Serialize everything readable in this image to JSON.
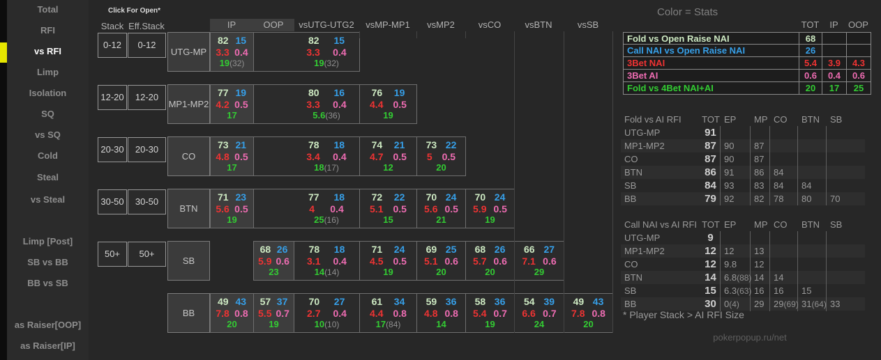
{
  "sidebar": {
    "items": [
      {
        "label": "Total",
        "active": false
      },
      {
        "label": "RFI",
        "active": false
      },
      {
        "label": "vs RFI",
        "active": true
      },
      {
        "label": "Limp",
        "active": false
      },
      {
        "label": "Isolation",
        "active": false
      },
      {
        "label": "SQ",
        "active": false
      },
      {
        "label": "vs SQ",
        "active": false
      },
      {
        "label": "Cold",
        "active": false
      },
      {
        "label": "Steal",
        "active": false
      },
      {
        "label": "vs Steal",
        "active": false
      },
      {
        "label": "Limp [Post]",
        "active": false
      },
      {
        "label": "SB vs BB",
        "active": false
      },
      {
        "label": "BB vs SB",
        "active": false
      },
      {
        "label": "as Raiser[OOP]",
        "active": false
      },
      {
        "label": "as Raiser[IP]",
        "active": false
      }
    ]
  },
  "grid": {
    "note": "Click For Open*",
    "stack_header": "Stack",
    "eff_stack_header": "Eff.Stack",
    "columns": [
      "IP",
      "OOP",
      "vsUTG-UTG2",
      "vsMP-MP1",
      "vsMP2",
      "vsCO",
      "vsBTN",
      "vsSB"
    ],
    "rows": [
      {
        "stack": "0-12",
        "eff_stack": "0-12",
        "position": "UTG-MP",
        "cells": [
          {
            "span": "ip",
            "hl": true,
            "fold": "82",
            "call": "15",
            "b3": "3.3",
            "b3ai": "0.4",
            "f4": "19",
            "p": "(32)"
          },
          {
            "span": "merged",
            "hl": false,
            "fold": "82",
            "call": "15",
            "b3": "3.3",
            "b3ai": "0.4",
            "f4": "19",
            "p": "(32)"
          }
        ]
      },
      {
        "stack": "12-20",
        "eff_stack": "12-20",
        "position": "MP1-MP2",
        "cells": [
          {
            "span": "ip",
            "hl": true,
            "fold": "77",
            "call": "19",
            "b3": "4.2",
            "b3ai": "0.5",
            "f4": "17",
            "p": ""
          },
          {
            "span": "merged",
            "hl": false,
            "fold": "80",
            "call": "16",
            "b3": "3.3",
            "b3ai": "0.4",
            "f4": "5.6",
            "p": "(36)"
          },
          {
            "span": "vsmp1",
            "hl": false,
            "fold": "76",
            "call": "19",
            "b3": "4.4",
            "b3ai": "0.5",
            "f4": "19",
            "p": ""
          }
        ]
      },
      {
        "stack": "20-30",
        "eff_stack": "20-30",
        "position": "CO",
        "cells": [
          {
            "span": "ip",
            "hl": true,
            "fold": "73",
            "call": "21",
            "b3": "4.8",
            "b3ai": "0.5",
            "f4": "17",
            "p": ""
          },
          {
            "span": "merged",
            "hl": false,
            "fold": "78",
            "call": "18",
            "b3": "3.4",
            "b3ai": "0.4",
            "f4": "18",
            "p": "(17)"
          },
          {
            "span": "vsmp1",
            "hl": false,
            "fold": "74",
            "call": "21",
            "b3": "4.7",
            "b3ai": "0.5",
            "f4": "12",
            "p": ""
          },
          {
            "span": "vsmp2",
            "hl": false,
            "fold": "73",
            "call": "22",
            "b3": "5",
            "b3ai": "0.5",
            "f4": "20",
            "p": ""
          }
        ]
      },
      {
        "stack": "30-50",
        "eff_stack": "30-50",
        "position": "BTN",
        "cells": [
          {
            "span": "ip",
            "hl": true,
            "fold": "71",
            "call": "23",
            "b3": "5.6",
            "b3ai": "0.5",
            "f4": "19",
            "p": ""
          },
          {
            "span": "merged",
            "hl": false,
            "fold": "77",
            "call": "18",
            "b3": "4",
            "b3ai": "0.4",
            "f4": "25",
            "p": "(16)"
          },
          {
            "span": "vsmp1",
            "hl": false,
            "fold": "72",
            "call": "22",
            "b3": "5.1",
            "b3ai": "0.5",
            "f4": "15",
            "p": ""
          },
          {
            "span": "vsmp2",
            "hl": false,
            "fold": "70",
            "call": "24",
            "b3": "5.6",
            "b3ai": "0.5",
            "f4": "21",
            "p": ""
          },
          {
            "span": "vsco",
            "hl": false,
            "fold": "70",
            "call": "24",
            "b3": "5.9",
            "b3ai": "0.5",
            "f4": "19",
            "p": ""
          }
        ]
      },
      {
        "stack": "50+",
        "eff_stack": "50+",
        "position": "SB",
        "cells": [
          {
            "span": "oop",
            "hl": true,
            "fold": "68",
            "call": "26",
            "b3": "5.9",
            "b3ai": "0.6",
            "f4": "23",
            "p": ""
          },
          {
            "span": "vsutg",
            "hl": false,
            "fold": "78",
            "call": "18",
            "b3": "3.1",
            "b3ai": "0.4",
            "f4": "14",
            "p": "(14)"
          },
          {
            "span": "vsmp1",
            "hl": false,
            "fold": "71",
            "call": "24",
            "b3": "4.5",
            "b3ai": "0.5",
            "f4": "19",
            "p": ""
          },
          {
            "span": "vsmp2",
            "hl": false,
            "fold": "69",
            "call": "25",
            "b3": "5.1",
            "b3ai": "0.6",
            "f4": "20",
            "p": ""
          },
          {
            "span": "vsco",
            "hl": false,
            "fold": "68",
            "call": "26",
            "b3": "5.7",
            "b3ai": "0.6",
            "f4": "20",
            "p": ""
          },
          {
            "span": "vsbtn",
            "hl": false,
            "fold": "66",
            "call": "27",
            "b3": "7.1",
            "b3ai": "0.6",
            "f4": "29",
            "p": ""
          }
        ]
      },
      {
        "stack": "",
        "eff_stack": "",
        "position": "BB",
        "cells": [
          {
            "span": "ip",
            "hl": true,
            "fold": "49",
            "call": "43",
            "b3": "7.8",
            "b3ai": "0.8",
            "f4": "20",
            "p": ""
          },
          {
            "span": "oop",
            "hl": true,
            "fold": "57",
            "call": "37",
            "b3": "5.5",
            "b3ai": "0.7",
            "f4": "19",
            "p": ""
          },
          {
            "span": "vsutg",
            "hl": false,
            "fold": "70",
            "call": "27",
            "b3": "2.7",
            "b3ai": "0.4",
            "f4": "10",
            "p": "(10)"
          },
          {
            "span": "vsmp1",
            "hl": false,
            "fold": "61",
            "call": "34",
            "b3": "4.4",
            "b3ai": "0.8",
            "f4": "17",
            "p": "(84)"
          },
          {
            "span": "vsmp2",
            "hl": false,
            "fold": "59",
            "call": "36",
            "b3": "4.8",
            "b3ai": "0.8",
            "f4": "14",
            "p": ""
          },
          {
            "span": "vsco",
            "hl": false,
            "fold": "58",
            "call": "36",
            "b3": "5.4",
            "b3ai": "0.7",
            "f4": "19",
            "p": ""
          },
          {
            "span": "vsbtn",
            "hl": false,
            "fold": "54",
            "call": "39",
            "b3": "6.6",
            "b3ai": "0.7",
            "f4": "24",
            "p": ""
          },
          {
            "span": "vssb",
            "hl": false,
            "fold": "49",
            "call": "43",
            "b3": "7.8",
            "b3ai": "0.8",
            "f4": "20",
            "p": ""
          }
        ]
      }
    ]
  },
  "legend": {
    "title": "Color = Stats",
    "cols": [
      "TOT",
      "IP",
      "OOP"
    ],
    "rows": [
      {
        "label": "Fold vs Open Raise NAI",
        "color": "#cde9c2",
        "tot": "68",
        "ip": "",
        "oop": ""
      },
      {
        "label": "Call NAI vs Open Raise NAI",
        "color": "#369fe8",
        "tot": "26",
        "ip": "",
        "oop": ""
      },
      {
        "label": "3Bet NAI",
        "color": "#ee3333",
        "tot": "5.4",
        "ip": "3.9",
        "oop": "4.3"
      },
      {
        "label": "3Bet AI",
        "color": "#ee6cb2",
        "tot": "0.6",
        "ip": "0.4",
        "oop": "0.6"
      },
      {
        "label": "Fold vs 4Bet NAI+AI",
        "color": "#33cc33",
        "tot": "20",
        "ip": "17",
        "oop": "25"
      }
    ]
  },
  "fold_table": {
    "title": "Fold vs AI RFI",
    "cols": [
      "TOT",
      "EP",
      "MP",
      "CO",
      "BTN",
      "SB"
    ],
    "rows": [
      {
        "pos": "UTG-MP",
        "vals": [
          "91",
          "",
          "",
          "",
          "",
          ""
        ]
      },
      {
        "pos": "MP1-MP2",
        "vals": [
          "87",
          "90",
          "87",
          "",
          "",
          ""
        ]
      },
      {
        "pos": "CO",
        "vals": [
          "87",
          "90",
          "87",
          "",
          "",
          ""
        ]
      },
      {
        "pos": "BTN",
        "vals": [
          "86",
          "91",
          "86",
          "84",
          "",
          ""
        ]
      },
      {
        "pos": "SB",
        "vals": [
          "84",
          "93",
          "83",
          "84",
          "84",
          ""
        ]
      },
      {
        "pos": "BB",
        "vals": [
          "79",
          "92",
          "82",
          "78",
          "80",
          "70"
        ]
      }
    ]
  },
  "call_table": {
    "title": "Call NAI vs AI RFI",
    "cols": [
      "TOT",
      "EP",
      "MP",
      "CO",
      "BTN",
      "SB"
    ],
    "rows": [
      {
        "pos": "UTG-MP",
        "vals": [
          "9",
          "",
          "",
          "",
          "",
          ""
        ]
      },
      {
        "pos": "MP1-MP2",
        "vals": [
          "12",
          "12",
          "13",
          "",
          "",
          ""
        ]
      },
      {
        "pos": "CO",
        "vals": [
          "12",
          "9.8",
          "12",
          "",
          "",
          ""
        ]
      },
      {
        "pos": "BTN",
        "vals": [
          "14",
          "6.8(88)",
          "14",
          "14",
          "",
          ""
        ]
      },
      {
        "pos": "SB",
        "vals": [
          "15",
          "6.3(63)",
          "16",
          "16",
          "15",
          ""
        ]
      },
      {
        "pos": "BB",
        "vals": [
          "30",
          "0(4)",
          "29",
          "29(69)",
          "31(64)",
          "33"
        ]
      }
    ]
  },
  "footnote": "* Player Stack > AI RFI Size",
  "watermark": "pokerpopup.ru/net",
  "colors": {
    "fold": "#cde9c2",
    "call": "#369fe8",
    "bet3_nai": "#ee3333",
    "bet3_ai": "#ee6cb2",
    "fold_vs_4bet": "#33cc33",
    "paren": "#8f8f8f",
    "active_indicator": "#e6e600",
    "background": "#272727",
    "cell_highlight": "#3d3d3d"
  }
}
